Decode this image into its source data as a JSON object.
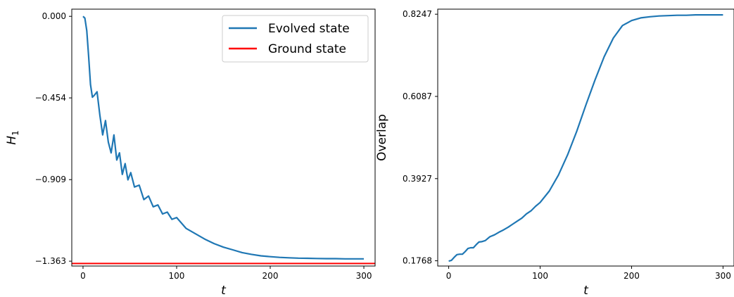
{
  "chart_data": [
    {
      "type": "line",
      "title": "",
      "xlabel": "t",
      "ylabel": "H",
      "ylabel_subscript": "1",
      "xlim": [
        -12,
        312
      ],
      "ylim": [
        -1.39,
        0.04
      ],
      "x_ticks": [
        0,
        100,
        200,
        300
      ],
      "x_tick_labels": [
        "0",
        "100",
        "200",
        "300"
      ],
      "y_ticks": [
        0.0,
        -0.454,
        -0.909,
        -1.363
      ],
      "y_tick_labels": [
        "0.000",
        "−0.454",
        "−0.909",
        "−1.363"
      ],
      "grid": false,
      "legend": "top-right",
      "series": [
        {
          "name": "Evolved state",
          "color": "#1f77b4",
          "x": [
            0,
            2,
            4,
            6,
            8,
            10,
            12,
            15,
            18,
            21,
            24,
            27,
            30,
            33,
            36,
            39,
            42,
            45,
            48,
            51,
            55,
            60,
            65,
            70,
            75,
            80,
            85,
            90,
            95,
            100,
            110,
            120,
            130,
            140,
            150,
            160,
            170,
            180,
            190,
            200,
            210,
            220,
            230,
            240,
            250,
            260,
            270,
            280,
            290,
            300
          ],
          "y": [
            0.0,
            -0.01,
            -0.08,
            -0.22,
            -0.38,
            -0.45,
            -0.44,
            -0.42,
            -0.55,
            -0.66,
            -0.58,
            -0.7,
            -0.76,
            -0.66,
            -0.8,
            -0.76,
            -0.88,
            -0.82,
            -0.91,
            -0.87,
            -0.95,
            -0.94,
            -1.02,
            -1.0,
            -1.06,
            -1.05,
            -1.1,
            -1.09,
            -1.13,
            -1.12,
            -1.18,
            -1.21,
            -1.24,
            -1.265,
            -1.285,
            -1.3,
            -1.315,
            -1.325,
            -1.333,
            -1.338,
            -1.342,
            -1.344,
            -1.346,
            -1.347,
            -1.348,
            -1.349,
            -1.349,
            -1.35,
            -1.35,
            -1.35
          ]
        },
        {
          "name": "Ground state",
          "color": "#ff0000",
          "y_constant": -1.376
        }
      ]
    },
    {
      "type": "line",
      "title": "",
      "xlabel": "t",
      "ylabel": "Overlap",
      "xlim": [
        -12,
        312
      ],
      "ylim": [
        0.163,
        0.838
      ],
      "x_ticks": [
        0,
        100,
        200,
        300
      ],
      "x_tick_labels": [
        "0",
        "100",
        "200",
        "300"
      ],
      "y_ticks": [
        0.1768,
        0.3927,
        0.6087,
        0.8247
      ],
      "y_tick_labels": [
        "0.1768",
        "0.3927",
        "0.6087",
        "0.8247"
      ],
      "grid": false,
      "series": [
        {
          "color": "#1f77b4",
          "x": [
            0,
            3,
            6,
            9,
            12,
            15,
            18,
            21,
            24,
            27,
            30,
            33,
            36,
            40,
            45,
            50,
            55,
            60,
            65,
            70,
            75,
            80,
            85,
            90,
            95,
            100,
            110,
            120,
            130,
            140,
            150,
            160,
            170,
            180,
            190,
            200,
            210,
            220,
            230,
            240,
            250,
            260,
            270,
            280,
            290,
            300
          ],
          "y": [
            0.176,
            0.178,
            0.186,
            0.193,
            0.194,
            0.194,
            0.201,
            0.209,
            0.211,
            0.211,
            0.219,
            0.226,
            0.227,
            0.23,
            0.24,
            0.245,
            0.252,
            0.258,
            0.265,
            0.273,
            0.281,
            0.289,
            0.3,
            0.308,
            0.32,
            0.33,
            0.36,
            0.402,
            0.455,
            0.517,
            0.586,
            0.652,
            0.713,
            0.762,
            0.795,
            0.808,
            0.815,
            0.818,
            0.82,
            0.821,
            0.822,
            0.822,
            0.823,
            0.823,
            0.823,
            0.823
          ]
        }
      ]
    }
  ]
}
